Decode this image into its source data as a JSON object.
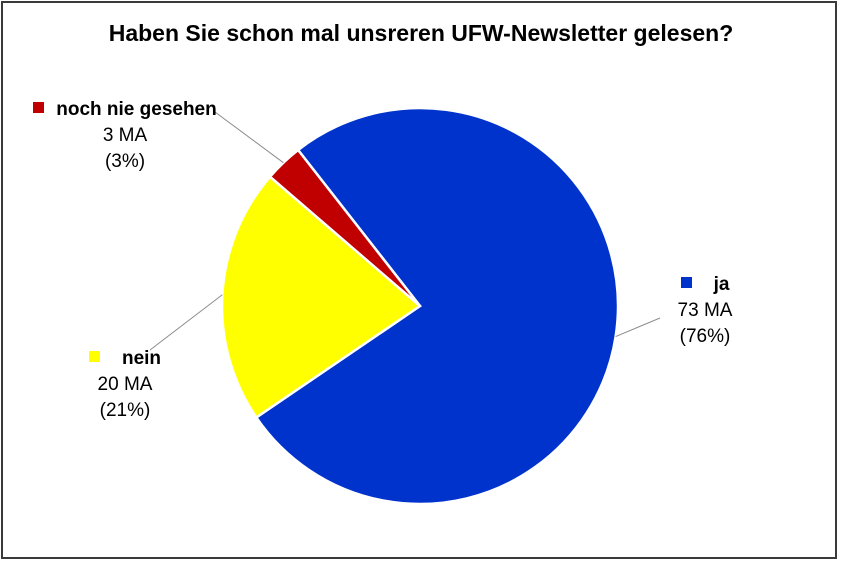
{
  "chart_data": {
    "type": "pie",
    "title": "Haben Sie schon mal unsreren UFW-Newsletter gelesen?",
    "slices": [
      {
        "name": "ja",
        "value": 73,
        "count_label": "73 MA",
        "percent_label": "(76%)",
        "color": "#0033cc"
      },
      {
        "name": "nein",
        "value": 20,
        "count_label": "20 MA",
        "percent_label": "(21%)",
        "color": "#ffff00"
      },
      {
        "name": "noch nie gesehen",
        "value": 3,
        "count_label": "3 MA",
        "percent_label": "(3%)",
        "color": "#c00000"
      }
    ]
  }
}
